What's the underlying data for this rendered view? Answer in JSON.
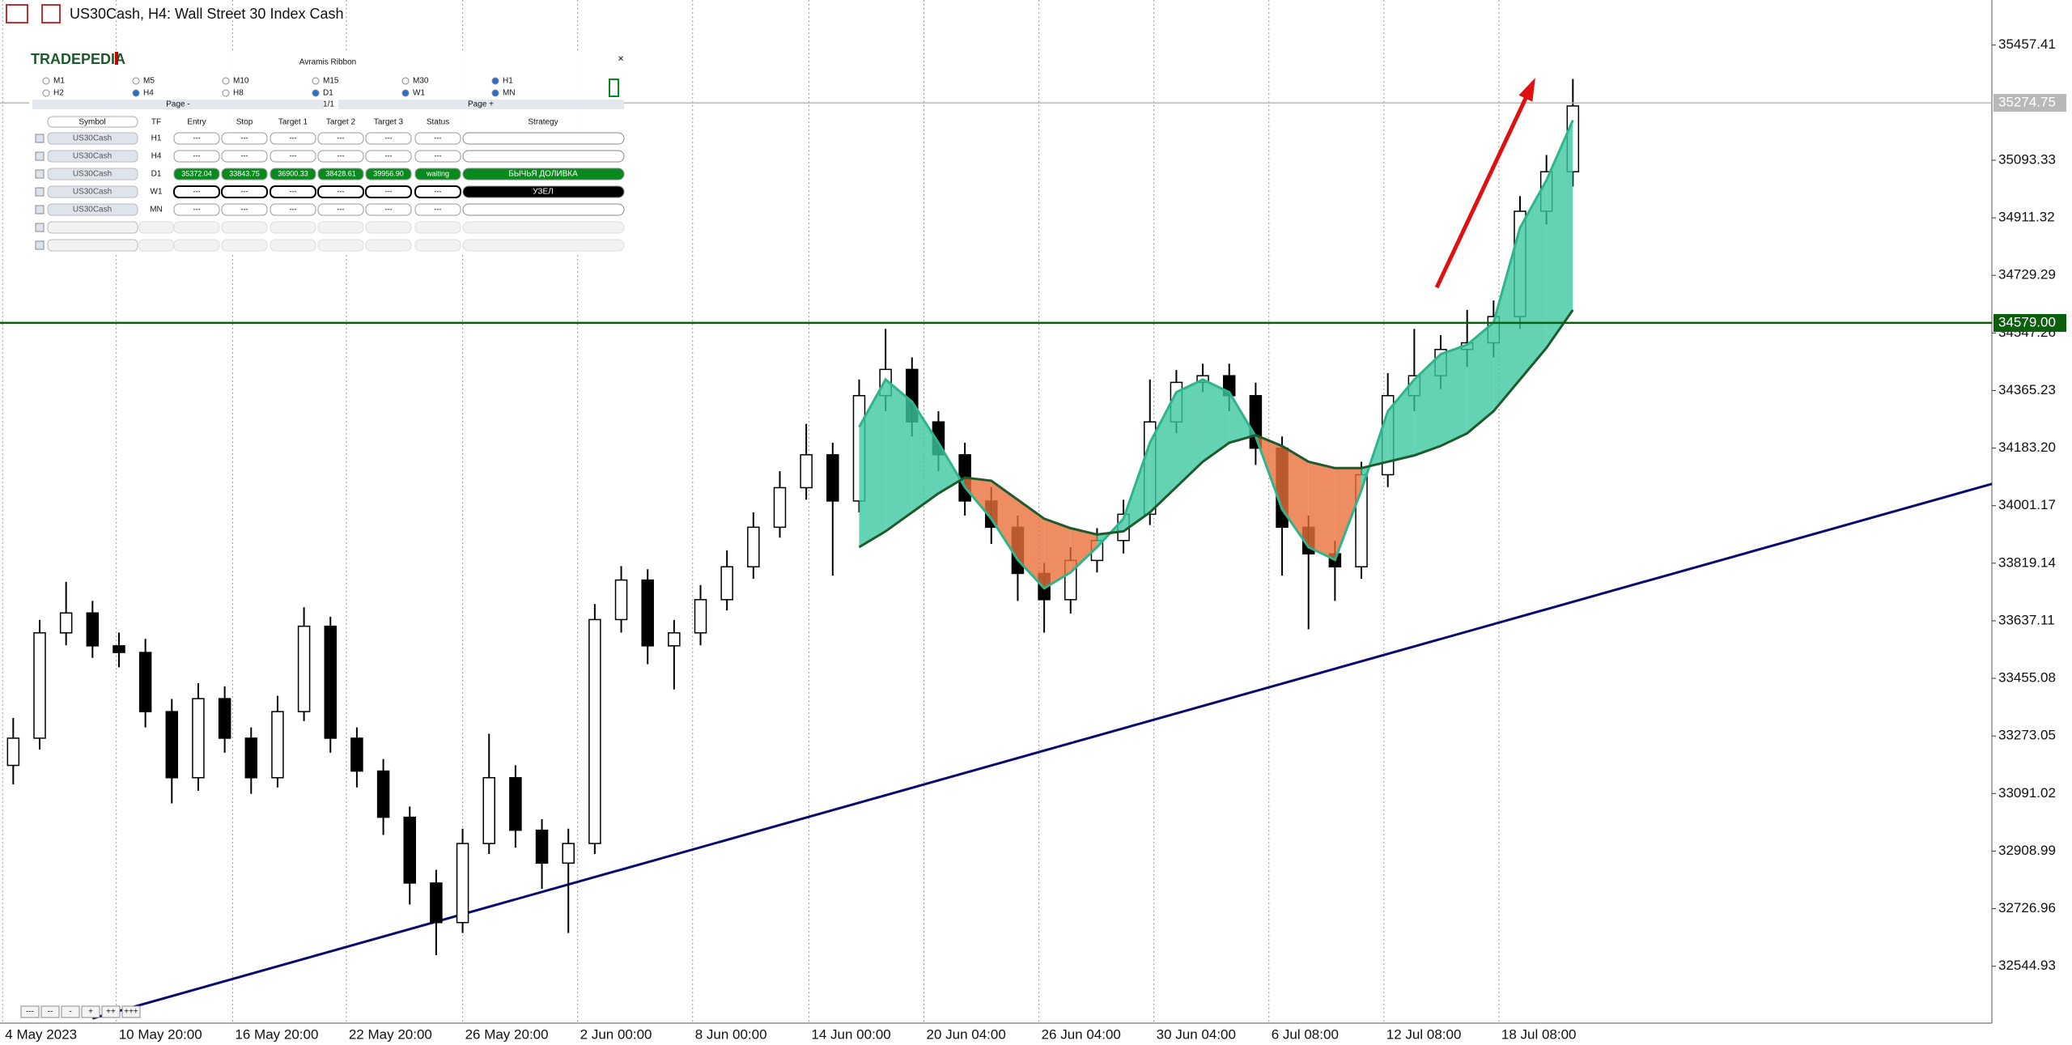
{
  "window": {
    "title": "US30Cash, H4:  Wall Street 30 Index Cash"
  },
  "panel": {
    "logo": "TRADEPEDIA",
    "title": "Avramis Ribbon",
    "close": "×",
    "timeframes": [
      {
        "label": "M1",
        "checked": false
      },
      {
        "label": "M5",
        "checked": false
      },
      {
        "label": "M10",
        "checked": false
      },
      {
        "label": "M15",
        "checked": false
      },
      {
        "label": "M30",
        "checked": false
      },
      {
        "label": "H1",
        "checked": true
      },
      {
        "label": "H2",
        "checked": false
      },
      {
        "label": "H4",
        "checked": true
      },
      {
        "label": "H8",
        "checked": false
      },
      {
        "label": "D1",
        "checked": true
      },
      {
        "label": "W1",
        "checked": true
      },
      {
        "label": "MN",
        "checked": true
      }
    ],
    "page_prev": "Page -",
    "page_info": "1/1",
    "page_next": "Page +",
    "columns": [
      "Symbol",
      "TF",
      "Entry",
      "Stop",
      "Target 1",
      "Target 2",
      "Target 3",
      "Status",
      "Strategy"
    ],
    "rows": [
      {
        "symbol": "US30Cash",
        "tf": "H1",
        "cells": [
          "---",
          "---",
          "---",
          "---",
          "---",
          "---"
        ]
      },
      {
        "symbol": "US30Cash",
        "tf": "H4",
        "cells": [
          "---",
          "---",
          "---",
          "---",
          "---",
          "---"
        ]
      },
      {
        "symbol": "US30Cash",
        "tf": "D1",
        "cells": [
          "35372.04",
          "33843.75",
          "36900.33",
          "38428.61",
          "39956.90",
          "waiting"
        ],
        "strategy": "БЫЧЬЯ ДОЛИВКА",
        "color": "#0a8a1e"
      },
      {
        "symbol": "US30Cash",
        "tf": "W1",
        "cells": [
          "---",
          "---",
          "---",
          "---",
          "---",
          "---"
        ],
        "strategy": "УЗЕЛ",
        "color": "#000000"
      },
      {
        "symbol": "US30Cash",
        "tf": "MN",
        "cells": [
          "---",
          "---",
          "---",
          "---",
          "---",
          "---"
        ]
      }
    ]
  },
  "toolbar": [
    "---",
    "--",
    "-",
    "+",
    "++",
    "+++"
  ],
  "chart_data": {
    "type": "candlestick",
    "x": [
      0,
      1,
      2,
      3,
      4,
      5,
      6,
      7,
      8,
      9,
      10,
      11,
      12,
      13,
      14,
      15,
      16,
      17,
      18,
      19,
      20,
      21,
      22,
      23,
      24,
      25,
      26,
      27,
      28,
      29,
      30,
      31,
      32,
      33,
      34,
      35,
      36,
      37,
      38,
      39,
      40,
      41,
      42,
      43,
      44,
      45,
      46,
      47,
      48,
      49,
      50,
      51,
      52,
      53,
      54,
      55,
      56,
      57,
      58,
      59
    ],
    "open": [
      33180,
      33266,
      33599,
      33662,
      33558,
      33537,
      33350,
      33141,
      33391,
      33266,
      33141,
      33350,
      33620,
      33266,
      33162,
      33016,
      32808,
      32683,
      32933,
      33141,
      32975,
      32871,
      32933,
      33641,
      33766,
      33558,
      33599,
      33704,
      33808,
      33933,
      34058,
      34162,
      34016,
      34349,
      34432,
      34266,
      34162,
      34016,
      33933,
      33787,
      33704,
      33828,
      33891,
      33974,
      34266,
      34391,
      34412,
      34349,
      34183,
      33933,
      33849,
      33808,
      34099,
      34349,
      34412,
      34495,
      34516,
      34599,
      34932,
      35057
    ],
    "high": [
      33330,
      33640,
      33760,
      33700,
      33600,
      33580,
      33390,
      33440,
      33430,
      33300,
      33400,
      33680,
      33650,
      33300,
      33200,
      33050,
      32850,
      32980,
      33280,
      33180,
      33010,
      32980,
      33690,
      33810,
      33800,
      33640,
      33750,
      33860,
      33980,
      34110,
      34260,
      34200,
      34400,
      34560,
      34470,
      34300,
      34200,
      34060,
      33970,
      33820,
      33870,
      33930,
      34020,
      34400,
      34430,
      34450,
      34450,
      34390,
      34220,
      33970,
      33890,
      34140,
      34420,
      34560,
      34540,
      34620,
      34650,
      34980,
      35110,
      35350
    ],
    "low": [
      33120,
      33230,
      33560,
      33520,
      33490,
      33300,
      33060,
      33100,
      33220,
      33090,
      33110,
      33320,
      33220,
      33110,
      32960,
      32740,
      32580,
      32650,
      32900,
      32920,
      32790,
      32650,
      32900,
      33600,
      33500,
      33420,
      33560,
      33670,
      33770,
      33900,
      34020,
      33780,
      33980,
      34300,
      34220,
      34110,
      33970,
      33880,
      33700,
      33600,
      33660,
      33790,
      33850,
      33940,
      34230,
      34360,
      34300,
      34130,
      33780,
      33610,
      33700,
      33770,
      34060,
      34300,
      34370,
      34440,
      34470,
      34560,
      34890,
      35010
    ],
    "close": [
      33266,
      33599,
      33662,
      33558,
      33537,
      33350,
      33141,
      33391,
      33266,
      33141,
      33350,
      33620,
      33266,
      33162,
      33016,
      32808,
      32683,
      32933,
      33141,
      32975,
      32871,
      32933,
      33641,
      33766,
      33558,
      33599,
      33704,
      33808,
      33933,
      34058,
      34162,
      34016,
      34349,
      34432,
      34266,
      34162,
      34016,
      33933,
      33787,
      33704,
      33828,
      33891,
      33974,
      34266,
      34391,
      34412,
      34349,
      34183,
      33933,
      33849,
      33808,
      34099,
      34349,
      34412,
      34495,
      34516,
      34599,
      34932,
      35057,
      35265
    ],
    "up_color": "#ffffff",
    "down_color": "#000000",
    "ribbon": {
      "up_color": "#3cc8a0",
      "down_color": "#e8703a",
      "series": [
        {
          "color": "#2fb58c",
          "values": [
            null,
            null,
            null,
            null,
            null,
            null,
            null,
            null,
            null,
            null,
            null,
            null,
            null,
            null,
            null,
            null,
            null,
            null,
            null,
            null,
            null,
            null,
            null,
            null,
            null,
            null,
            null,
            null,
            null,
            null,
            null,
            null,
            34250,
            34400,
            34330,
            34200,
            34060,
            33960,
            33830,
            33740,
            33790,
            33870,
            33960,
            34200,
            34360,
            34400,
            34360,
            34220,
            33990,
            33870,
            33830,
            34050,
            34300,
            34400,
            34480,
            34510,
            34580,
            34880,
            35030,
            35220
          ]
        },
        {
          "color": "#1f5a2e",
          "values": [
            null,
            null,
            null,
            null,
            null,
            null,
            null,
            null,
            null,
            null,
            null,
            null,
            null,
            null,
            null,
            null,
            null,
            null,
            null,
            null,
            null,
            null,
            null,
            null,
            null,
            null,
            null,
            null,
            null,
            null,
            null,
            null,
            33870,
            33920,
            33980,
            34040,
            34090,
            34080,
            34020,
            33960,
            33930,
            33910,
            33920,
            33980,
            34060,
            34140,
            34200,
            34224,
            34190,
            34140,
            34120,
            34120,
            34140,
            34160,
            34190,
            34230,
            34300,
            34400,
            34500,
            34620
          ]
        }
      ]
    },
    "hlines": [
      {
        "value": 34579,
        "label": "34579.00",
        "color": "#0b5e0b"
      },
      {
        "value": 35274.75,
        "label": "35274.75",
        "color": "#b8b8b8"
      }
    ],
    "trendline": {
      "x": [
        3,
        74.85
      ],
      "y": [
        32380,
        34070
      ],
      "color": "#0a0a6e"
    },
    "arrow": {
      "x": [
        53.85,
        57.5
      ],
      "y": [
        34691,
        35340
      ],
      "color": "#e01010"
    },
    "xlim": [
      -0.5,
      74.85
    ],
    "ylim": [
      32365,
      35600
    ],
    "xticks": [
      {
        "value": -0.4,
        "label": "4 May 2023"
      },
      {
        "value": 3.9,
        "label": "10 May 20:00"
      },
      {
        "value": 8.3,
        "label": "16 May 20:00"
      },
      {
        "value": 12.6,
        "label": "22 May 20:00"
      },
      {
        "value": 17,
        "label": "26 May 20:00"
      },
      {
        "value": 21.35,
        "label": "2 Jun 00:00"
      },
      {
        "value": 25.7,
        "label": "8 Jun 00:00"
      },
      {
        "value": 30.1,
        "label": "14 Jun 00:00"
      },
      {
        "value": 34.45,
        "label": "20 Jun 04:00"
      },
      {
        "value": 38.8,
        "label": "26 Jun 04:00"
      },
      {
        "value": 43.15,
        "label": "30 Jun 04:00"
      },
      {
        "value": 47.5,
        "label": "6 Jul 08:00"
      },
      {
        "value": 51.85,
        "label": "12 Jul 08:00"
      },
      {
        "value": 56.2,
        "label": "18 Jul 08:00"
      }
    ],
    "yticks": [
      35457.41,
      35093.33,
      34911.32,
      34729.29,
      34547.26,
      34365.23,
      {
        "value": 34183.2,
        "label": "34183.20"
      },
      34001.17,
      33819.14,
      33637.11,
      33455.08,
      33273.05,
      33091.02,
      32908.99,
      32726.96,
      32544.93
    ],
    "grid": true
  }
}
